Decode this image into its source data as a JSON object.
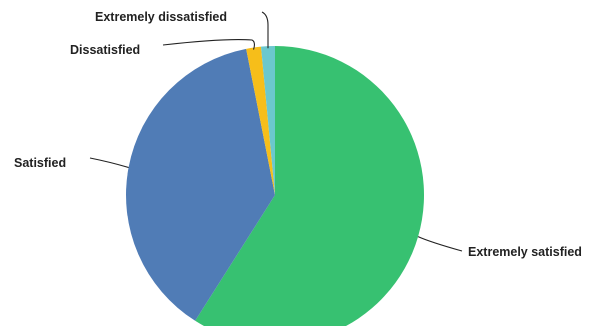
{
  "chart_data": {
    "type": "pie",
    "title": "",
    "slices": [
      {
        "label": "Extremely satisfied",
        "value": 59.0,
        "color": "#37c171"
      },
      {
        "label": "Satisfied",
        "value": 37.9,
        "color": "#507cb6"
      },
      {
        "label": "Dissatisfied",
        "value": 1.6,
        "color": "#f6be1a"
      },
      {
        "label": "Extremely dissatisfied",
        "value": 1.5,
        "color": "#6bc8cd"
      }
    ],
    "start_angle": "12 o'clock",
    "direction": "clockwise",
    "legend": "none (leader-line labels)"
  }
}
